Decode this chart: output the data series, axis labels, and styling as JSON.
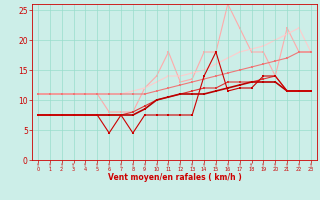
{
  "x": [
    0,
    1,
    2,
    3,
    4,
    5,
    6,
    7,
    8,
    9,
    10,
    11,
    12,
    13,
    14,
    15,
    16,
    17,
    18,
    19,
    20,
    21,
    22,
    23
  ],
  "series": [
    {
      "y": [
        7.5,
        7.5,
        7.5,
        7.5,
        7.5,
        7.5,
        4.5,
        7.5,
        4.5,
        7.5,
        7.5,
        7.5,
        7.5,
        7.5,
        14,
        18,
        11.5,
        12,
        12,
        14,
        14,
        11.5,
        11.5,
        11.5
      ],
      "color": "#cc0000",
      "lw": 0.8,
      "ms": 1.8,
      "zorder": 5
    },
    {
      "y": [
        7.5,
        7.5,
        7.5,
        7.5,
        7.5,
        7.5,
        7.5,
        7.5,
        7.5,
        8.5,
        10,
        10.5,
        11,
        11,
        11,
        11.5,
        12,
        12.5,
        13,
        13,
        13,
        11.5,
        11.5,
        11.5
      ],
      "color": "#bb0000",
      "lw": 1.2,
      "ms": 1.8,
      "zorder": 4
    },
    {
      "y": [
        7.5,
        7.5,
        7.5,
        7.5,
        7.5,
        7.5,
        7.5,
        7.5,
        8,
        9,
        10,
        10.5,
        11,
        11.5,
        12,
        12,
        13,
        13,
        13,
        13.5,
        14,
        11.5,
        11.5,
        11.5
      ],
      "color": "#dd3333",
      "lw": 0.8,
      "ms": 1.5,
      "zorder": 3
    },
    {
      "y": [
        11,
        11,
        11,
        11,
        11,
        11,
        11,
        11,
        11,
        11,
        11.5,
        12,
        12.5,
        13,
        13.5,
        14,
        14.5,
        15,
        15.5,
        16,
        16.5,
        17,
        18,
        18
      ],
      "color": "#ee7777",
      "lw": 0.8,
      "ms": 1.5,
      "zorder": 2
    },
    {
      "y": [
        11,
        11,
        11,
        11,
        11,
        11,
        8,
        8,
        8,
        12,
        14,
        18,
        13,
        13.5,
        18,
        18,
        26,
        22,
        18,
        18,
        14,
        22,
        18,
        18
      ],
      "color": "#ffaaaa",
      "lw": 0.8,
      "ms": 1.5,
      "zorder": 1
    },
    {
      "y": [
        11,
        11,
        11,
        11,
        11,
        11,
        11,
        11,
        11.5,
        12,
        13,
        14,
        14,
        14.5,
        15,
        16,
        17,
        18,
        18.5,
        19,
        20,
        21,
        22,
        18
      ],
      "color": "#ffcccc",
      "lw": 0.8,
      "ms": 1.5,
      "zorder": 1
    }
  ],
  "xlim": [
    -0.5,
    23.5
  ],
  "ylim": [
    0,
    26
  ],
  "xlabel": "Vent moyen/en rafales ( km/h )",
  "yticks": [
    0,
    5,
    10,
    15,
    20,
    25
  ],
  "xticks": [
    0,
    1,
    2,
    3,
    4,
    5,
    6,
    7,
    8,
    9,
    10,
    11,
    12,
    13,
    14,
    15,
    16,
    17,
    18,
    19,
    20,
    21,
    22,
    23
  ],
  "bg_color": "#cceee8",
  "grid_color": "#99ddcc",
  "axis_color": "#cc0000",
  "label_color": "#cc0000"
}
